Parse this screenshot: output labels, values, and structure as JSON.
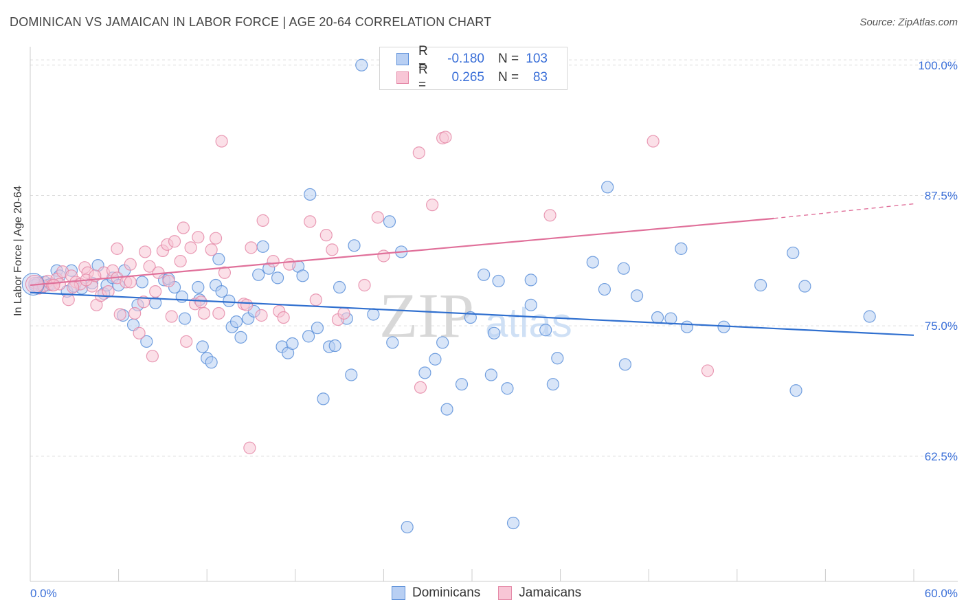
{
  "title": "DOMINICAN VS JAMAICAN IN LABOR FORCE | AGE 20-64 CORRELATION CHART",
  "source": "Source: ZipAtlas.com",
  "watermark": {
    "zip": "ZIP",
    "atlas": "atlas"
  },
  "legend": {
    "rows": [
      {
        "r_label": "R =",
        "r_value": "-0.180",
        "n_label": "N =",
        "n_value": "103",
        "color": "#5b8fd9",
        "fill": "#b8cff3"
      },
      {
        "r_label": "R =",
        "r_value": "0.265",
        "n_label": "N =",
        "n_value": "83",
        "color": "#e58aa8",
        "fill": "#f8c6d6"
      }
    ]
  },
  "bottom_legend": [
    "Dominicans",
    "Jamaicans"
  ],
  "chart_data": {
    "type": "scatter",
    "title": "DOMINICAN VS JAMAICAN IN LABOR FORCE | AGE 20-64 CORRELATION CHART",
    "ylabel": "In Labor Force | Age 20-64",
    "xlim": [
      0,
      60
    ],
    "ylim": [
      50.5,
      101.5
    ],
    "x_tick_labels": [
      "0.0%",
      "60.0%"
    ],
    "y_ticks": [
      62.5,
      75.0,
      87.5,
      100.0
    ],
    "y_tick_labels": [
      "62.5%",
      "75.0%",
      "87.5%",
      "100.0%"
    ],
    "grid": true,
    "legend_position": "top-center",
    "series": [
      {
        "name": "Dominicans",
        "color": "#5b8fd9",
        "fill": "#b8cff3",
        "trend": {
          "x0": 0,
          "y0": 78.2,
          "x1": 60,
          "y1": 74.1
        },
        "points": [
          [
            0.3,
            78.9
          ],
          [
            0.5,
            79.1
          ],
          [
            0.8,
            78.7
          ],
          [
            1.0,
            79.2
          ],
          [
            1.2,
            78.9
          ],
          [
            1.4,
            79.0
          ],
          [
            1.8,
            80.3
          ],
          [
            2.0,
            79.8
          ],
          [
            2.5,
            78.3
          ],
          [
            2.8,
            80.3
          ],
          [
            3.0,
            78.8
          ],
          [
            3.5,
            78.6
          ],
          [
            4.2,
            79.1
          ],
          [
            4.6,
            80.8
          ],
          [
            5.0,
            78.1
          ],
          [
            5.2,
            78.9
          ],
          [
            5.6,
            79.6
          ],
          [
            6.0,
            78.9
          ],
          [
            6.4,
            80.3
          ],
          [
            6.3,
            76.0
          ],
          [
            7.0,
            75.1
          ],
          [
            7.3,
            77.0
          ],
          [
            7.6,
            79.2
          ],
          [
            7.9,
            73.5
          ],
          [
            8.5,
            77.2
          ],
          [
            9.1,
            79.4
          ],
          [
            9.4,
            79.5
          ],
          [
            9.8,
            78.7
          ],
          [
            10.3,
            77.8
          ],
          [
            10.5,
            75.7
          ],
          [
            11.4,
            78.7
          ],
          [
            11.5,
            77.5
          ],
          [
            11.7,
            73.0
          ],
          [
            12.0,
            71.9
          ],
          [
            12.3,
            71.5
          ],
          [
            12.6,
            78.9
          ],
          [
            12.8,
            81.4
          ],
          [
            13.0,
            78.3
          ],
          [
            13.5,
            77.4
          ],
          [
            13.7,
            74.9
          ],
          [
            14.0,
            75.4
          ],
          [
            14.3,
            73.9
          ],
          [
            14.8,
            75.7
          ],
          [
            15.2,
            76.4
          ],
          [
            15.5,
            79.9
          ],
          [
            15.8,
            82.6
          ],
          [
            16.2,
            80.5
          ],
          [
            16.8,
            79.6
          ],
          [
            17.1,
            73.0
          ],
          [
            17.5,
            72.4
          ],
          [
            17.8,
            73.3
          ],
          [
            18.2,
            80.7
          ],
          [
            18.5,
            79.8
          ],
          [
            19.0,
            87.6
          ],
          [
            18.9,
            74.0
          ],
          [
            19.5,
            74.8
          ],
          [
            19.9,
            68.0
          ],
          [
            20.3,
            73.0
          ],
          [
            20.7,
            73.1
          ],
          [
            21.0,
            78.7
          ],
          [
            21.5,
            75.7
          ],
          [
            21.8,
            70.3
          ],
          [
            22.0,
            82.7
          ],
          [
            22.5,
            100.0
          ],
          [
            23.3,
            76.1
          ],
          [
            24.4,
            85.0
          ],
          [
            24.6,
            73.4
          ],
          [
            25.2,
            82.1
          ],
          [
            25.6,
            55.7
          ],
          [
            26.8,
            70.5
          ],
          [
            27.5,
            71.8
          ],
          [
            28.0,
            73.4
          ],
          [
            28.3,
            67.0
          ],
          [
            29.3,
            69.4
          ],
          [
            29.9,
            75.8
          ],
          [
            30.8,
            79.9
          ],
          [
            31.3,
            70.3
          ],
          [
            31.5,
            74.3
          ],
          [
            31.8,
            79.3
          ],
          [
            32.4,
            69.0
          ],
          [
            32.8,
            56.1
          ],
          [
            34.0,
            79.4
          ],
          [
            34.0,
            77.0
          ],
          [
            35.0,
            74.6
          ],
          [
            35.5,
            69.4
          ],
          [
            35.8,
            71.9
          ],
          [
            38.2,
            81.1
          ],
          [
            39.0,
            78.5
          ],
          [
            39.2,
            88.3
          ],
          [
            40.3,
            80.5
          ],
          [
            40.4,
            71.3
          ],
          [
            41.2,
            77.9
          ],
          [
            42.6,
            75.8
          ],
          [
            43.5,
            75.7
          ],
          [
            44.2,
            82.4
          ],
          [
            44.6,
            74.9
          ],
          [
            47.1,
            74.9
          ],
          [
            49.6,
            78.9
          ],
          [
            51.8,
            82.0
          ],
          [
            52.0,
            68.8
          ],
          [
            52.6,
            78.8
          ],
          [
            57.0,
            75.9
          ]
        ]
      },
      {
        "name": "Jamaicans",
        "color": "#e58aa8",
        "fill": "#f8c6d6",
        "trend": {
          "x0": 0,
          "y0": 78.9,
          "x1": 50.5,
          "y1": 85.3,
          "dash_to_x": 60,
          "dash_to_y": 86.7
        },
        "points": [
          [
            0.3,
            79.1
          ],
          [
            0.6,
            78.6
          ],
          [
            0.9,
            78.8
          ],
          [
            1.2,
            79.3
          ],
          [
            1.5,
            78.9
          ],
          [
            1.8,
            79.5
          ],
          [
            2.0,
            79.0
          ],
          [
            2.2,
            80.2
          ],
          [
            2.6,
            77.5
          ],
          [
            2.8,
            79.8
          ],
          [
            3.1,
            79.2
          ],
          [
            3.4,
            79.0
          ],
          [
            3.7,
            80.6
          ],
          [
            3.9,
            80.1
          ],
          [
            4.2,
            78.8
          ],
          [
            4.5,
            77.0
          ],
          [
            4.8,
            77.9
          ],
          [
            5.0,
            80.1
          ],
          [
            5.3,
            78.3
          ],
          [
            5.6,
            80.3
          ],
          [
            5.9,
            79.6
          ],
          [
            5.9,
            82.4
          ],
          [
            6.1,
            76.1
          ],
          [
            6.5,
            79.2
          ],
          [
            6.8,
            80.9
          ],
          [
            7.1,
            76.2
          ],
          [
            7.4,
            74.3
          ],
          [
            7.7,
            77.3
          ],
          [
            7.8,
            82.1
          ],
          [
            8.1,
            80.7
          ],
          [
            8.3,
            72.1
          ],
          [
            8.5,
            78.3
          ],
          [
            8.7,
            80.1
          ],
          [
            9.0,
            82.2
          ],
          [
            9.3,
            82.8
          ],
          [
            9.6,
            75.9
          ],
          [
            9.8,
            83.1
          ],
          [
            10.2,
            81.2
          ],
          [
            10.4,
            84.4
          ],
          [
            10.6,
            73.5
          ],
          [
            10.9,
            82.5
          ],
          [
            11.2,
            77.1
          ],
          [
            11.4,
            83.5
          ],
          [
            11.6,
            77.3
          ],
          [
            11.8,
            76.2
          ],
          [
            12.3,
            82.3
          ],
          [
            12.6,
            83.4
          ],
          [
            12.8,
            76.2
          ],
          [
            13.0,
            92.7
          ],
          [
            13.2,
            80.1
          ],
          [
            14.5,
            77.1
          ],
          [
            14.7,
            77.0
          ],
          [
            14.9,
            63.3
          ],
          [
            15.0,
            82.5
          ],
          [
            15.7,
            76.0
          ],
          [
            15.8,
            85.1
          ],
          [
            16.5,
            81.2
          ],
          [
            16.9,
            76.4
          ],
          [
            17.2,
            75.8
          ],
          [
            17.6,
            80.9
          ],
          [
            19.0,
            85.0
          ],
          [
            19.4,
            77.5
          ],
          [
            20.1,
            83.7
          ],
          [
            20.5,
            82.3
          ],
          [
            20.9,
            75.6
          ],
          [
            21.3,
            76.2
          ],
          [
            22.7,
            78.9
          ],
          [
            23.6,
            85.4
          ],
          [
            24.0,
            81.7
          ],
          [
            26.4,
            91.6
          ],
          [
            26.5,
            69.1
          ],
          [
            27.3,
            86.6
          ],
          [
            28.0,
            93.0
          ],
          [
            28.2,
            93.1
          ],
          [
            35.3,
            85.6
          ],
          [
            42.3,
            92.7
          ],
          [
            46.0,
            70.7
          ],
          [
            9.4,
            79.3
          ],
          [
            6.8,
            79.2
          ],
          [
            3.8,
            79.4
          ],
          [
            4.4,
            79.8
          ],
          [
            2.9,
            78.7
          ],
          [
            1.6,
            78.9
          ]
        ]
      }
    ]
  }
}
